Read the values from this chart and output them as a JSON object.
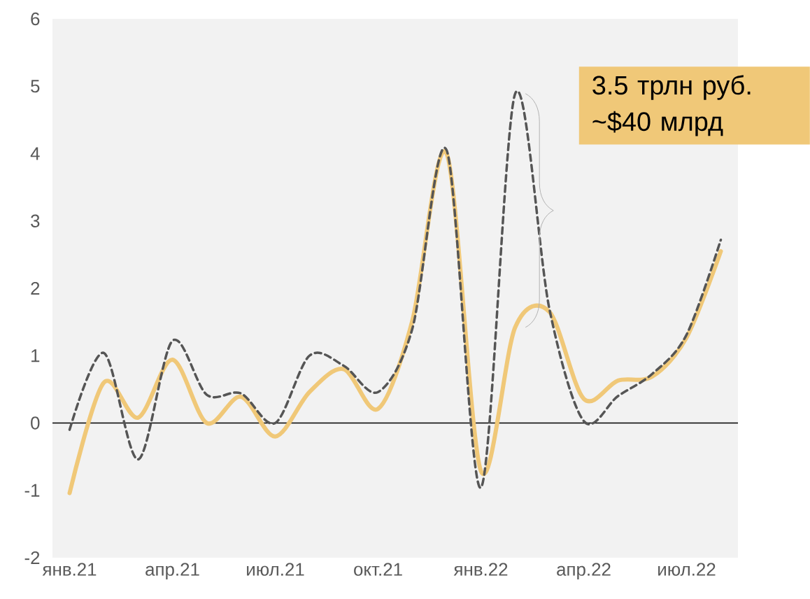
{
  "chart_data": {
    "type": "line",
    "categories": [
      "янв.21",
      null,
      null,
      "апр.21",
      null,
      null,
      "июл.21",
      null,
      null,
      "окт.21",
      null,
      null,
      "янв.22",
      null,
      null,
      "апр.22",
      null,
      null,
      "июл.22",
      null
    ],
    "series": [
      {
        "color": "#f0c878",
        "values": [
          -1.04,
          0.6,
          0.08,
          0.94,
          0.0,
          0.39,
          -0.2,
          0.46,
          0.8,
          0.21,
          1.52,
          4.0,
          -0.71,
          1.42,
          1.65,
          0.36,
          0.63,
          0.69,
          1.27,
          2.55
        ]
      },
      {
        "color": "#555555",
        "line_style": "dashed",
        "values": [
          -0.1,
          1.04,
          -0.54,
          1.22,
          0.42,
          0.44,
          0.0,
          1.0,
          0.85,
          0.46,
          1.4,
          4.05,
          -0.96,
          4.89,
          1.69,
          0.03,
          0.4,
          0.73,
          1.31,
          2.72
        ]
      }
    ],
    "ylim": [
      -2,
      6
    ],
    "yticks": [
      -2,
      -1,
      0,
      1,
      2,
      3,
      4,
      5,
      6
    ],
    "ref_lines": [
      {
        "axis": "y",
        "value": 0,
        "color": "#000000"
      }
    ],
    "annotations": [
      "3.5 трлн руб.",
      "~$40 млрд"
    ],
    "marker": "none"
  }
}
